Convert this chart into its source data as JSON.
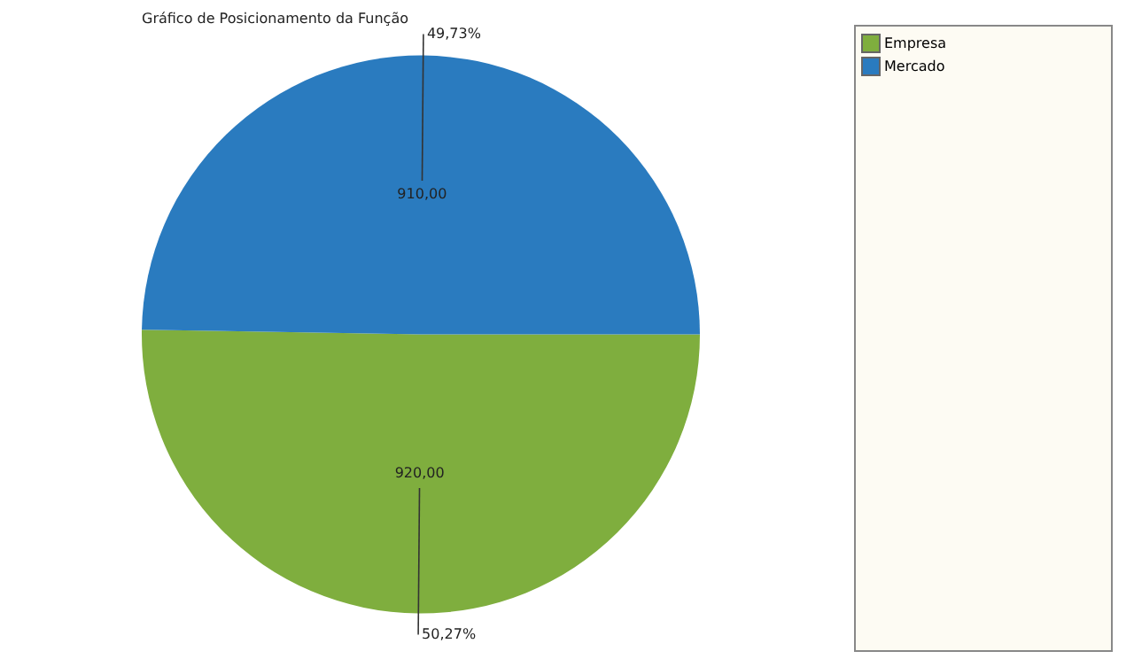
{
  "chart_data": {
    "type": "pie",
    "title": "Gráfico de Posicionamento da Função",
    "categories": [
      "Empresa",
      "Mercado"
    ],
    "values": [
      920,
      910
    ],
    "colors": [
      "#7fae3e",
      "#2a7bbf"
    ],
    "value_labels": [
      "920,00",
      "910,00"
    ],
    "annotations": [
      "50,27%",
      "49,73%"
    ],
    "legend": "right"
  }
}
